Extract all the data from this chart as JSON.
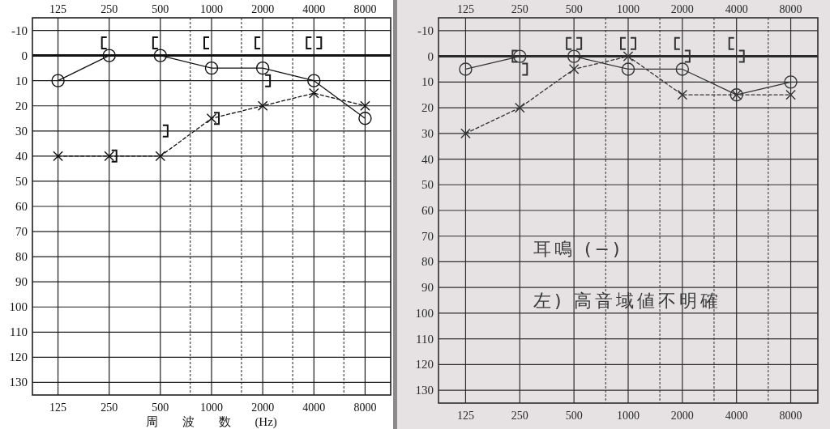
{
  "chart_data": [
    {
      "type": "line",
      "log": "x2",
      "categories": [
        "125",
        "250",
        "500",
        "1000",
        "2000",
        "4000",
        "8000"
      ],
      "x2lim": [
        88.4,
        11314
      ],
      "x2ticks": [
        125,
        250,
        500,
        {
          "value": 750,
          "label": null
        },
        1000,
        {
          "value": 1500,
          "label": null
        },
        2000,
        {
          "value": 3000,
          "label": null
        },
        4000,
        {
          "value": 6000,
          "label": null
        },
        8000
      ],
      "ylim": [
        135,
        -15
      ],
      "yticks": [
        -10,
        0,
        10,
        20,
        30,
        40,
        50,
        60,
        70,
        80,
        90,
        100,
        110,
        120,
        130
      ],
      "xlabel": "周 波 数 (Hz)",
      "grid": true,
      "ref_lines": [
        {
          "axis": "y",
          "value": 0,
          "color": "#111111"
        }
      ],
      "series": [
        {
          "type": "line",
          "color": "#111111",
          "marker": "circle",
          "line_style": "solid",
          "values": [
            10,
            0,
            0,
            5,
            5,
            10,
            25
          ]
        },
        {
          "type": "line",
          "color": "#111111",
          "marker": "cross",
          "line_style": "dashed",
          "values": [
            40,
            40,
            40,
            25,
            20,
            15,
            20
          ]
        },
        {
          "type": "scatter",
          "color": "#111111",
          "values": [
            null,
            -5,
            -5,
            -5,
            -5,
            -5,
            null
          ]
        },
        {
          "type": "scatter",
          "color": "#111111",
          "values": [
            null,
            40,
            30,
            25,
            10,
            -5,
            null
          ]
        }
      ]
    },
    {
      "type": "line",
      "log": "x2",
      "categories": [
        "125",
        "250",
        "500",
        "1000",
        "2000",
        "4000",
        "8000"
      ],
      "x2lim": [
        88.4,
        11314
      ],
      "x2ticks": [
        125,
        250,
        500,
        {
          "value": 750,
          "label": null
        },
        1000,
        {
          "value": 1500,
          "label": null
        },
        2000,
        {
          "value": 3000,
          "label": null
        },
        4000,
        {
          "value": 6000,
          "label": null
        },
        8000
      ],
      "ylim": [
        135,
        -15
      ],
      "yticks": [
        -10,
        0,
        10,
        20,
        30,
        40,
        50,
        60,
        70,
        80,
        90,
        100,
        110,
        120,
        130
      ],
      "grid": true,
      "ref_lines": [
        {
          "axis": "y",
          "value": 0,
          "color": "#2a2a2a"
        }
      ],
      "annotations": [
        "耳鳴 (−)",
        "左) 高音域値不明確"
      ],
      "series": [
        {
          "type": "line",
          "color": "#333333",
          "marker": "circle",
          "line_style": "solid",
          "values": [
            5,
            0,
            0,
            5,
            5,
            15,
            10
          ]
        },
        {
          "type": "line",
          "color": "#333333",
          "marker": "cross",
          "line_style": "dashed",
          "values": [
            30,
            20,
            5,
            0,
            15,
            15,
            15
          ]
        },
        {
          "type": "scatter",
          "color": "#333333",
          "values": [
            null,
            0,
            -5,
            -5,
            -5,
            -5,
            null
          ]
        },
        {
          "type": "scatter",
          "color": "#333333",
          "values": [
            null,
            5,
            -5,
            -5,
            0,
            0,
            null
          ]
        }
      ]
    }
  ]
}
